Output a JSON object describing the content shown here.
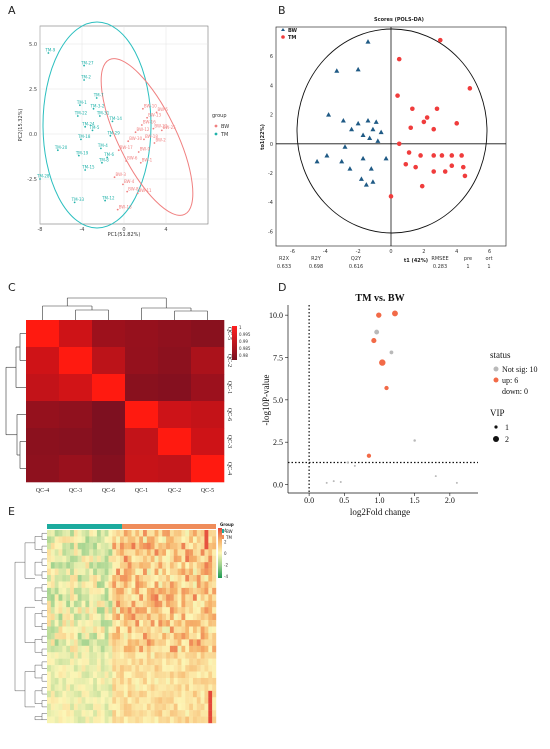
{
  "panel_labels": [
    "A",
    "B",
    "C",
    "D",
    "E"
  ],
  "chart_data": [
    {
      "panel": "A",
      "type": "scatter",
      "xlabel": "PC1(51.82%)",
      "ylabel": "PC2(15.32%)",
      "xlim": [
        -8,
        8
      ],
      "ylim": [
        -5,
        6
      ],
      "xticks": [
        "-8",
        "-4",
        "0",
        "4"
      ],
      "yticks": [
        "5.0",
        "2.5",
        "0.0",
        "-2.5"
      ],
      "legend_title": "group",
      "legend": [
        "BW",
        "TM"
      ],
      "colors": {
        "BW": "#f08080",
        "TM": "#20b2aa"
      },
      "tm_points": [
        {
          "x": -7.2,
          "y": 4.5,
          "label": "TM-9"
        },
        {
          "x": -3.8,
          "y": 3.8,
          "label": "TM-27"
        },
        {
          "x": -3.8,
          "y": 3.0,
          "label": "TM-2"
        },
        {
          "x": -4.2,
          "y": 1.6,
          "label": "TM-1"
        },
        {
          "x": -2.9,
          "y": 1.4,
          "label": "TM-3-2"
        },
        {
          "x": -4.4,
          "y": 1.0,
          "label": "TM-22"
        },
        {
          "x": -2.6,
          "y": 2.0,
          "label": "TM-7"
        },
        {
          "x": -2.3,
          "y": 1.0,
          "label": "TM-31"
        },
        {
          "x": -3.7,
          "y": 0.4,
          "label": "TM-24"
        },
        {
          "x": -3.0,
          "y": 0.2,
          "label": "TM-5"
        },
        {
          "x": -4.1,
          "y": -0.3,
          "label": "TM-18"
        },
        {
          "x": -4.3,
          "y": -1.2,
          "label": "TM-19"
        },
        {
          "x": -6.3,
          "y": -0.9,
          "label": "TM-20"
        },
        {
          "x": -8.0,
          "y": -2.5,
          "label": "TM-28"
        },
        {
          "x": -3.7,
          "y": -2.0,
          "label": "TM-15"
        },
        {
          "x": -4.7,
          "y": -3.8,
          "label": "TM-33"
        },
        {
          "x": -1.8,
          "y": -3.7,
          "label": "TM-12"
        },
        {
          "x": -2.1,
          "y": -1.6,
          "label": "TM-8"
        },
        {
          "x": -2.2,
          "y": -0.8,
          "label": "TM-4"
        },
        {
          "x": -1.3,
          "y": -0.1,
          "label": "TM-29"
        },
        {
          "x": -1.6,
          "y": -1.3,
          "label": "TM-6"
        },
        {
          "x": -1.1,
          "y": 0.7,
          "label": "TM-14"
        }
      ],
      "bw_points": [
        {
          "x": 1.8,
          "y": 1.4,
          "label": "BW-10"
        },
        {
          "x": 2.2,
          "y": 0.9,
          "label": "BW-13"
        },
        {
          "x": 3.1,
          "y": 1.2,
          "label": "BW-5"
        },
        {
          "x": 1.7,
          "y": 0.5,
          "label": "BW-16"
        },
        {
          "x": 2.8,
          "y": 0.3,
          "label": "BW-23"
        },
        {
          "x": 3.6,
          "y": 0.2,
          "label": "BW-25"
        },
        {
          "x": 1.1,
          "y": 0.1,
          "label": "BW-12"
        },
        {
          "x": 1.9,
          "y": -0.3,
          "label": "BW-18"
        },
        {
          "x": 2.9,
          "y": -0.5,
          "label": "BW-2"
        },
        {
          "x": 0.4,
          "y": -0.4,
          "label": "BW-30"
        },
        {
          "x": -0.5,
          "y": -0.9,
          "label": "BW-17"
        },
        {
          "x": 1.4,
          "y": -1.0,
          "label": "BW-9"
        },
        {
          "x": 0.2,
          "y": -1.5,
          "label": "BW-6"
        },
        {
          "x": 1.6,
          "y": -1.6,
          "label": "BW-1"
        },
        {
          "x": -0.9,
          "y": -2.4,
          "label": "BW-3"
        },
        {
          "x": -0.1,
          "y": -2.8,
          "label": "BW-4"
        },
        {
          "x": 0.3,
          "y": -3.2,
          "label": "BW-8"
        },
        {
          "x": 1.3,
          "y": -3.3,
          "label": "BW-11"
        },
        {
          "x": -0.6,
          "y": -4.2,
          "label": "BW-13"
        }
      ]
    },
    {
      "panel": "B",
      "type": "scatter",
      "title": "Scores (POLS-DA)",
      "xlabel": "t1 (42%)",
      "ylabel": "to1(22%)",
      "xlim": [
        -7,
        7
      ],
      "ylim": [
        -7,
        8
      ],
      "xticks": [
        "-6",
        "-4",
        "-2",
        "0",
        "2",
        "4",
        "6"
      ],
      "yticks": [
        "6",
        "4",
        "2",
        "0",
        "-2",
        "-4",
        "-6"
      ],
      "legend": [
        "BW",
        "TM"
      ],
      "colors": {
        "BW": "#1f5a85",
        "TM": "#f03c3c"
      },
      "bw_points": [
        [
          -1.4,
          7.0
        ],
        [
          -3.3,
          5.0
        ],
        [
          -2.0,
          5.1
        ],
        [
          -3.8,
          2.0
        ],
        [
          -2.9,
          1.6
        ],
        [
          -2.0,
          1.4
        ],
        [
          -1.4,
          1.6
        ],
        [
          -0.9,
          1.5
        ],
        [
          -2.4,
          1.0
        ],
        [
          -1.7,
          0.6
        ],
        [
          -1.1,
          1.0
        ],
        [
          -0.6,
          0.8
        ],
        [
          -1.3,
          0.4
        ],
        [
          -0.8,
          0.2
        ],
        [
          -2.8,
          -0.2
        ],
        [
          -3.9,
          -0.8
        ],
        [
          -4.5,
          -1.2
        ],
        [
          -3.0,
          -1.2
        ],
        [
          -1.7,
          -1.0
        ],
        [
          -2.5,
          -1.7
        ],
        [
          -1.2,
          -1.7
        ],
        [
          -1.8,
          -2.4
        ],
        [
          -1.5,
          -2.8
        ],
        [
          -1.1,
          -2.6
        ],
        [
          -0.3,
          -1.0
        ]
      ],
      "tm_points": [
        [
          3.0,
          7.1
        ],
        [
          0.5,
          5.8
        ],
        [
          4.8,
          3.8
        ],
        [
          0.4,
          3.3
        ],
        [
          1.3,
          2.4
        ],
        [
          2.8,
          2.4
        ],
        [
          2.2,
          1.8
        ],
        [
          2.0,
          1.5
        ],
        [
          4.0,
          1.4
        ],
        [
          1.2,
          1.1
        ],
        [
          2.6,
          1.0
        ],
        [
          0.5,
          0.0
        ],
        [
          1.1,
          -0.6
        ],
        [
          1.8,
          -0.8
        ],
        [
          2.6,
          -0.8
        ],
        [
          3.1,
          -0.8
        ],
        [
          3.7,
          -0.8
        ],
        [
          4.3,
          -0.8
        ],
        [
          0.9,
          -1.4
        ],
        [
          1.5,
          -1.6
        ],
        [
          3.7,
          -1.5
        ],
        [
          4.4,
          -1.6
        ],
        [
          2.6,
          -1.9
        ],
        [
          3.3,
          -1.9
        ],
        [
          4.5,
          -2.2
        ],
        [
          1.9,
          -2.9
        ],
        [
          0.0,
          -3.6
        ]
      ],
      "stats_headers": [
        "R2X",
        "R2Y",
        "Q2Y",
        "RMSEE",
        "pre",
        "ort"
      ],
      "stats_values": [
        "0.633",
        "0.698",
        "0.616",
        "0.283",
        "1",
        "1"
      ]
    },
    {
      "panel": "C",
      "type": "heatmap",
      "rows": [
        "QC-5",
        "QC-2",
        "QC-1",
        "QC-6",
        "QC-3",
        "QC-4"
      ],
      "cols": [
        "QC-4",
        "QC-3",
        "QC-6",
        "QC-1",
        "QC-2",
        "QC-5"
      ],
      "values": [
        [
          1,
          0.997,
          0.9935,
          0.993,
          0.9926,
          0.9921
        ],
        [
          0.9971,
          1,
          0.9957,
          0.9929,
          0.9923,
          0.9945
        ],
        [
          0.9962,
          0.9973,
          1,
          0.9921,
          0.9918,
          0.9934
        ],
        [
          0.9929,
          0.9926,
          0.9913,
          1,
          0.9969,
          0.9963
        ],
        [
          0.9922,
          0.992,
          0.9913,
          0.9962,
          1,
          0.997
        ],
        [
          0.9924,
          0.9932,
          0.9918,
          0.9964,
          0.9961,
          1
        ]
      ],
      "colorbar_ticks": [
        "1",
        "0.995",
        "0.99",
        "0.985",
        "0.98"
      ]
    },
    {
      "panel": "D",
      "type": "scatter",
      "title": "TM vs. BW",
      "xlabel": "log2Fold change",
      "ylabel": "-log10P-value",
      "xlim": [
        -0.3,
        2.4
      ],
      "ylim": [
        -0.5,
        10.6
      ],
      "xticks": [
        "0.0",
        "0.5",
        "1.0",
        "1.5",
        "2.0"
      ],
      "yticks": [
        "0.0",
        "2.5",
        "5.0",
        "7.5",
        "10.0"
      ],
      "legend_title": "status",
      "legend": [
        "Not sig: 10",
        "up: 6",
        "down: 0"
      ],
      "vip_title": "VIP",
      "vip_legend": [
        "1",
        "2"
      ],
      "colors": {
        "up": "#f26a47",
        "notsig": "#b9b9b9"
      },
      "points": [
        {
          "x": 0.99,
          "y": 10.0,
          "status": "up",
          "vip": 1.6
        },
        {
          "x": 1.22,
          "y": 10.1,
          "status": "up",
          "vip": 1.8
        },
        {
          "x": 0.92,
          "y": 8.5,
          "status": "up",
          "vip": 1.5
        },
        {
          "x": 1.04,
          "y": 7.2,
          "status": "up",
          "vip": 2.0
        },
        {
          "x": 1.1,
          "y": 5.7,
          "status": "up",
          "vip": 1.2
        },
        {
          "x": 0.85,
          "y": 1.7,
          "status": "up",
          "vip": 1.2
        },
        {
          "x": 0.96,
          "y": 9.0,
          "status": "notsig",
          "vip": 1.4
        },
        {
          "x": 1.17,
          "y": 7.8,
          "status": "notsig",
          "vip": 1.0
        },
        {
          "x": 1.5,
          "y": 2.6,
          "status": "notsig",
          "vip": 0.5
        },
        {
          "x": 0.55,
          "y": 1.3,
          "status": "notsig",
          "vip": 0.4
        },
        {
          "x": 0.25,
          "y": 0.1,
          "status": "notsig",
          "vip": 0.3
        },
        {
          "x": 0.35,
          "y": 0.2,
          "status": "notsig",
          "vip": 0.3
        },
        {
          "x": 0.45,
          "y": 0.15,
          "status": "notsig",
          "vip": 0.3
        },
        {
          "x": 1.8,
          "y": 0.5,
          "status": "notsig",
          "vip": 0.3
        },
        {
          "x": 0.65,
          "y": 1.1,
          "status": "notsig",
          "vip": 0.3
        },
        {
          "x": 2.1,
          "y": 0.1,
          "status": "notsig",
          "vip": 0.3
        }
      ],
      "hline": 1.3,
      "vline": 0.0
    },
    {
      "panel": "E",
      "type": "heatmap",
      "legend_title": "Group",
      "legend": [
        "BW",
        "TM"
      ],
      "colors": {
        "BW": "#1cab9e",
        "TM": "#ef8c5a"
      },
      "colorbar_ticks": [
        "4",
        "2",
        "0",
        "-2",
        "-4"
      ],
      "n_rows": 30,
      "n_cols": 44,
      "n_bw": 17
    }
  ]
}
